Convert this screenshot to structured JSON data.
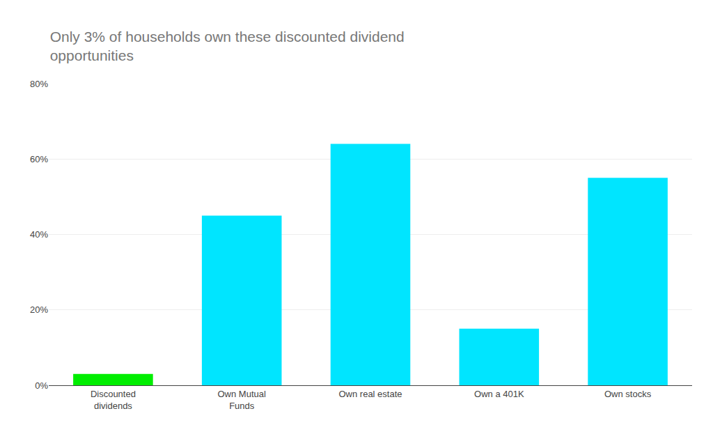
{
  "chart_data": {
    "type": "bar",
    "title": "Only 3% of households own these discounted dividend\nopportunities",
    "categories": [
      "Discounted\ndividends",
      "Own Mutual\nFunds",
      "Own real estate",
      "Own a 401K",
      "Own stocks"
    ],
    "values": [
      3,
      45,
      64,
      15,
      55
    ],
    "colors": [
      "#00ee00",
      "#00e5ff",
      "#00e5ff",
      "#00e5ff",
      "#00e5ff"
    ],
    "ylim": [
      0,
      80
    ],
    "yticks": [
      {
        "value": 0,
        "label": "0%"
      },
      {
        "value": 20,
        "label": "20%"
      },
      {
        "value": 40,
        "label": "40%"
      },
      {
        "value": 60,
        "label": "60%"
      },
      {
        "value": 80,
        "label": "80%"
      }
    ],
    "grid": true
  }
}
